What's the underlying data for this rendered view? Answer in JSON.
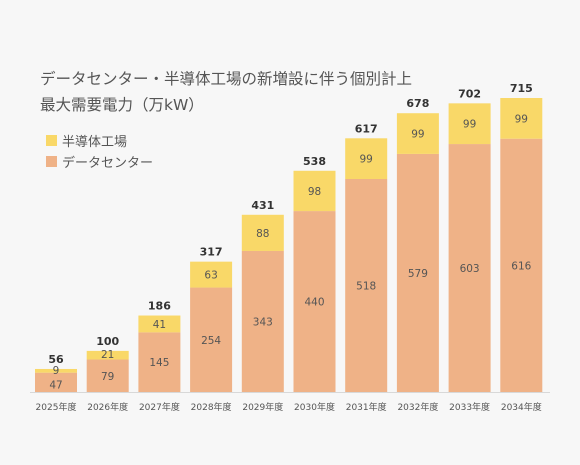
{
  "title_line1": "データセンター・半導体工場の新増設に伴う個別計上",
  "title_line2": "最大需要電力（万kW）",
  "colors": {
    "semiconductor": "#f9d868",
    "datacenter": "#efb287",
    "axis": "#d8d8d8",
    "text": "#555555",
    "total": "#333333"
  },
  "chart_data": {
    "type": "bar",
    "stacked": true,
    "categories": [
      "2025年度",
      "2026年度",
      "2027年度",
      "2028年度",
      "2029年度",
      "2030年度",
      "2031年度",
      "2032年度",
      "2033年度",
      "2034年度"
    ],
    "series": [
      {
        "name": "データセンター",
        "values": [
          47,
          79,
          145,
          254,
          343,
          440,
          518,
          579,
          603,
          616
        ]
      },
      {
        "name": "半導体工場",
        "values": [
          9,
          21,
          41,
          63,
          88,
          98,
          99,
          99,
          99,
          99
        ]
      }
    ],
    "totals": [
      56,
      100,
      186,
      317,
      431,
      538,
      617,
      678,
      702,
      715
    ],
    "legend_order": [
      "半導体工場",
      "データセンター"
    ],
    "legend": "top-left",
    "grid": false,
    "ylim": [
      0,
      715
    ]
  }
}
